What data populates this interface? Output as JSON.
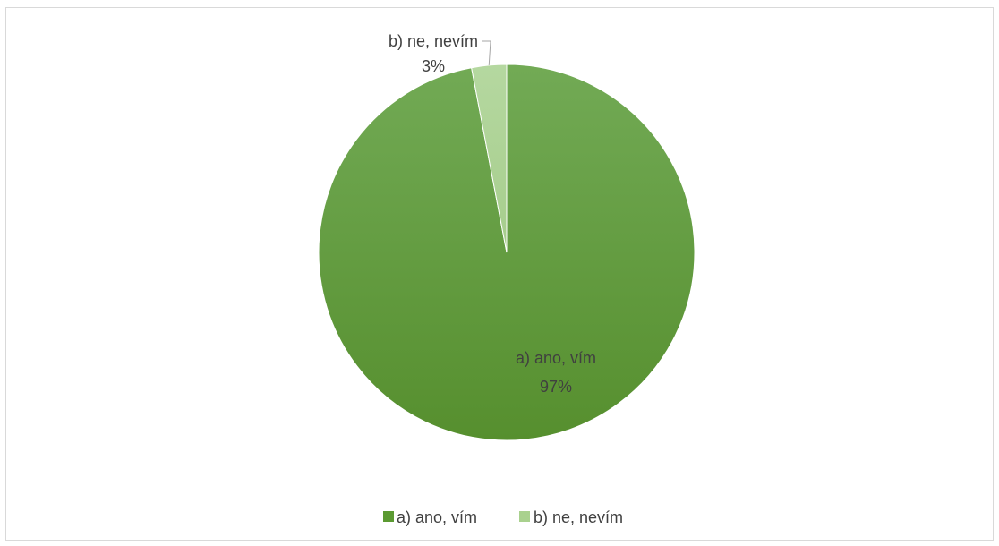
{
  "chart_data": {
    "type": "pie",
    "categories": [
      "a) ano, vím",
      "b) ne, nevím"
    ],
    "values": [
      97,
      3
    ],
    "data_labels": [
      {
        "category": "a) ano, vím",
        "value": "97%"
      },
      {
        "category": "b) ne, nevím",
        "value": "3%"
      }
    ],
    "colors": [
      "#5b9a32",
      "#a9d18e"
    ],
    "legend": {
      "position": "bottom",
      "entries": [
        "a) ano, vím",
        "b) ne, nevím"
      ]
    },
    "start_angle_deg": 0,
    "direction": "clockwise"
  }
}
